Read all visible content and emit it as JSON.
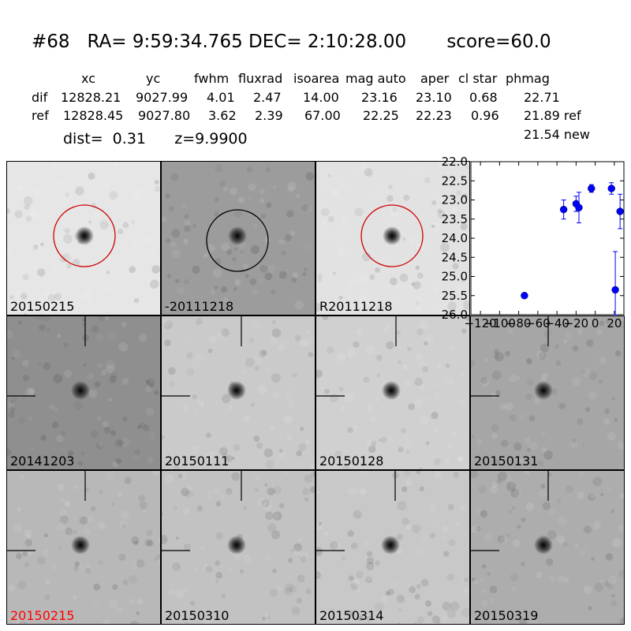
{
  "header": {
    "title": "#68   RA= 9:59:34.765 DEC= 2:10:28.00       score=60.0",
    "columns": [
      "xc",
      "yc",
      "fwhm",
      "fluxrad",
      "isoarea",
      "mag auto",
      "aper",
      "cl star",
      "phmag"
    ],
    "rows": [
      {
        "label": "dif",
        "values": [
          "12828.21",
          "9027.99",
          "4.01",
          "2.47",
          "14.00",
          "23.16",
          "23.10",
          "0.68",
          "22.71"
        ]
      },
      {
        "label": "ref",
        "values": [
          "12828.45",
          "9027.80",
          "3.62",
          "2.39",
          "67.00",
          "22.25",
          "22.23",
          "0.96",
          "21.89 ref"
        ]
      }
    ],
    "extra_phmag": "21.54 new",
    "dist_line": "dist=  0.31      z=9.9900"
  },
  "panels": [
    {
      "label": "20150215",
      "label_color": "#000000",
      "circle": "red"
    },
    {
      "label": "-20111218",
      "label_color": "#000000",
      "circle": "black"
    },
    {
      "label": "R20111218",
      "label_color": "#000000",
      "circle": "red"
    },
    {
      "label": "20141203",
      "label_color": "#000000",
      "circle": "none"
    },
    {
      "label": "20150111",
      "label_color": "#000000",
      "circle": "none"
    },
    {
      "label": "20150128",
      "label_color": "#000000",
      "circle": "none"
    },
    {
      "label": "20150131",
      "label_color": "#000000",
      "circle": "none"
    },
    {
      "label": "20150215",
      "label_color": "#ff0000",
      "circle": "none"
    },
    {
      "label": "20150310",
      "label_color": "#000000",
      "circle": "none"
    },
    {
      "label": "20150314",
      "label_color": "#000000",
      "circle": "none"
    },
    {
      "label": "20150319",
      "label_color": "#000000",
      "circle": "none"
    }
  ],
  "chart_data": {
    "type": "scatter",
    "y_inverted": true,
    "xlim": [
      -130,
      30
    ],
    "ylim": [
      26.0,
      22.0
    ],
    "x_ticks": [
      "−120",
      "−100",
      "−80",
      "−60",
      "−40",
      "−20",
      "0",
      "20"
    ],
    "y_ticks": [
      "22.0",
      "22.5",
      "23.0",
      "23.5",
      "24.0",
      "24.5",
      "25.0",
      "25.5",
      "26.0"
    ],
    "color": "#0000ff",
    "points": [
      {
        "x": -74,
        "y": 25.5,
        "err": 0.05
      },
      {
        "x": -33,
        "y": 23.25,
        "err": 0.25
      },
      {
        "x": -20,
        "y": 23.1,
        "err": 0.2
      },
      {
        "x": -17,
        "y": 23.2,
        "err": 0.4
      },
      {
        "x": -4,
        "y": 22.7,
        "err": 0.1
      },
      {
        "x": 17,
        "y": 22.7,
        "err": 0.15
      },
      {
        "x": 21,
        "y": 25.35,
        "err": 1.0
      },
      {
        "x": 26,
        "y": 23.3,
        "err": 0.45
      }
    ]
  }
}
